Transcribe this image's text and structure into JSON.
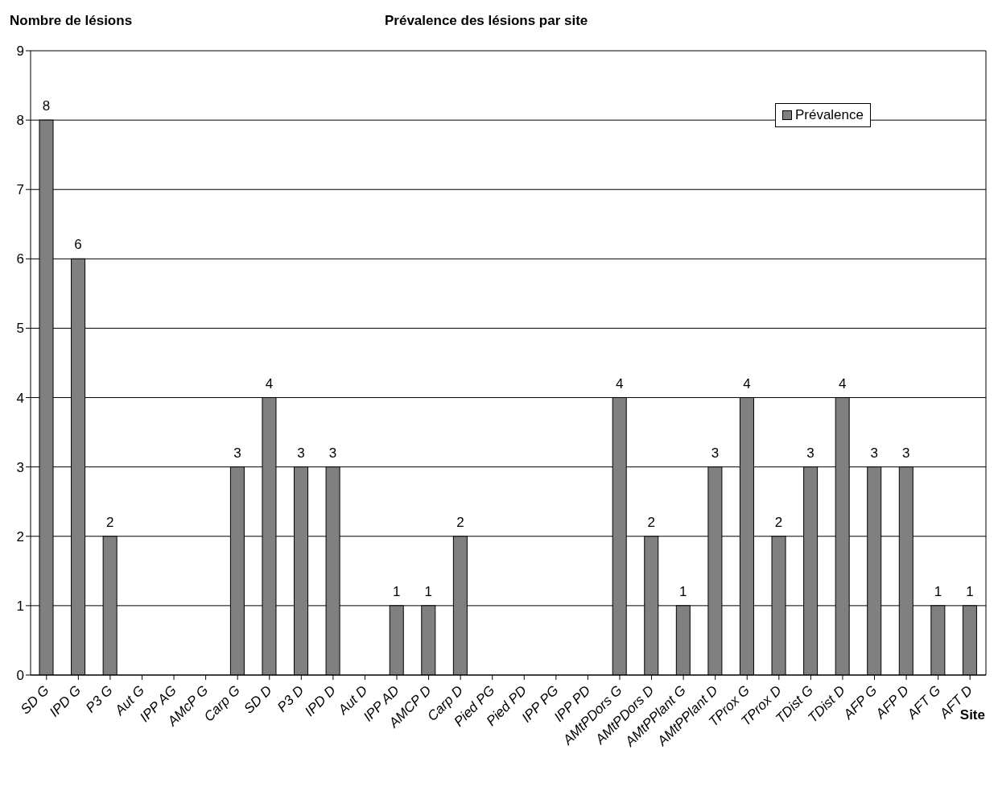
{
  "chart_data": {
    "type": "bar",
    "title": "Prévalence des lésions par site",
    "ylabel": "Nombre de lésions",
    "xlabel": "Site",
    "categories": [
      "SD G",
      "IPD G",
      "P3 G",
      "Aut G",
      "IPP AG",
      "AMcP G",
      "Carp G",
      "SD D",
      "P3 D",
      "IPD D",
      "Aut D",
      "IPP AD",
      "AMCP D",
      "Carp D",
      "Pied PG",
      "Pied PD",
      "IPP PG",
      "IPP PD",
      "AMtPDors G",
      "AMtPDors D",
      "AMtPPlant G",
      "AMtPPlant D",
      "TProx G",
      "TProx D",
      "TDist G",
      "TDist D",
      "AFP G",
      "AFP D",
      "AFT G",
      "AFT D"
    ],
    "series": [
      {
        "name": "Prévalence",
        "color": "#808080",
        "values": [
          8,
          6,
          2,
          0,
          0,
          0,
          3,
          4,
          3,
          3,
          0,
          1,
          1,
          2,
          0,
          0,
          0,
          0,
          4,
          2,
          1,
          3,
          4,
          2,
          3,
          4,
          3,
          3,
          1,
          1
        ]
      }
    ],
    "value_labels": [
      "8",
      "6",
      "2",
      null,
      null,
      null,
      "3",
      "4",
      "3",
      "3",
      null,
      "1",
      "1",
      "2",
      null,
      null,
      null,
      null,
      "4",
      "2",
      "1",
      "3",
      "4",
      "2",
      "3",
      "4",
      "3",
      "3",
      "1",
      "1"
    ],
    "ylim": [
      0,
      9
    ],
    "yticks": [
      0,
      1,
      2,
      3,
      4,
      5,
      6,
      7,
      8,
      9
    ],
    "grid": "y",
    "legend": "top right"
  }
}
